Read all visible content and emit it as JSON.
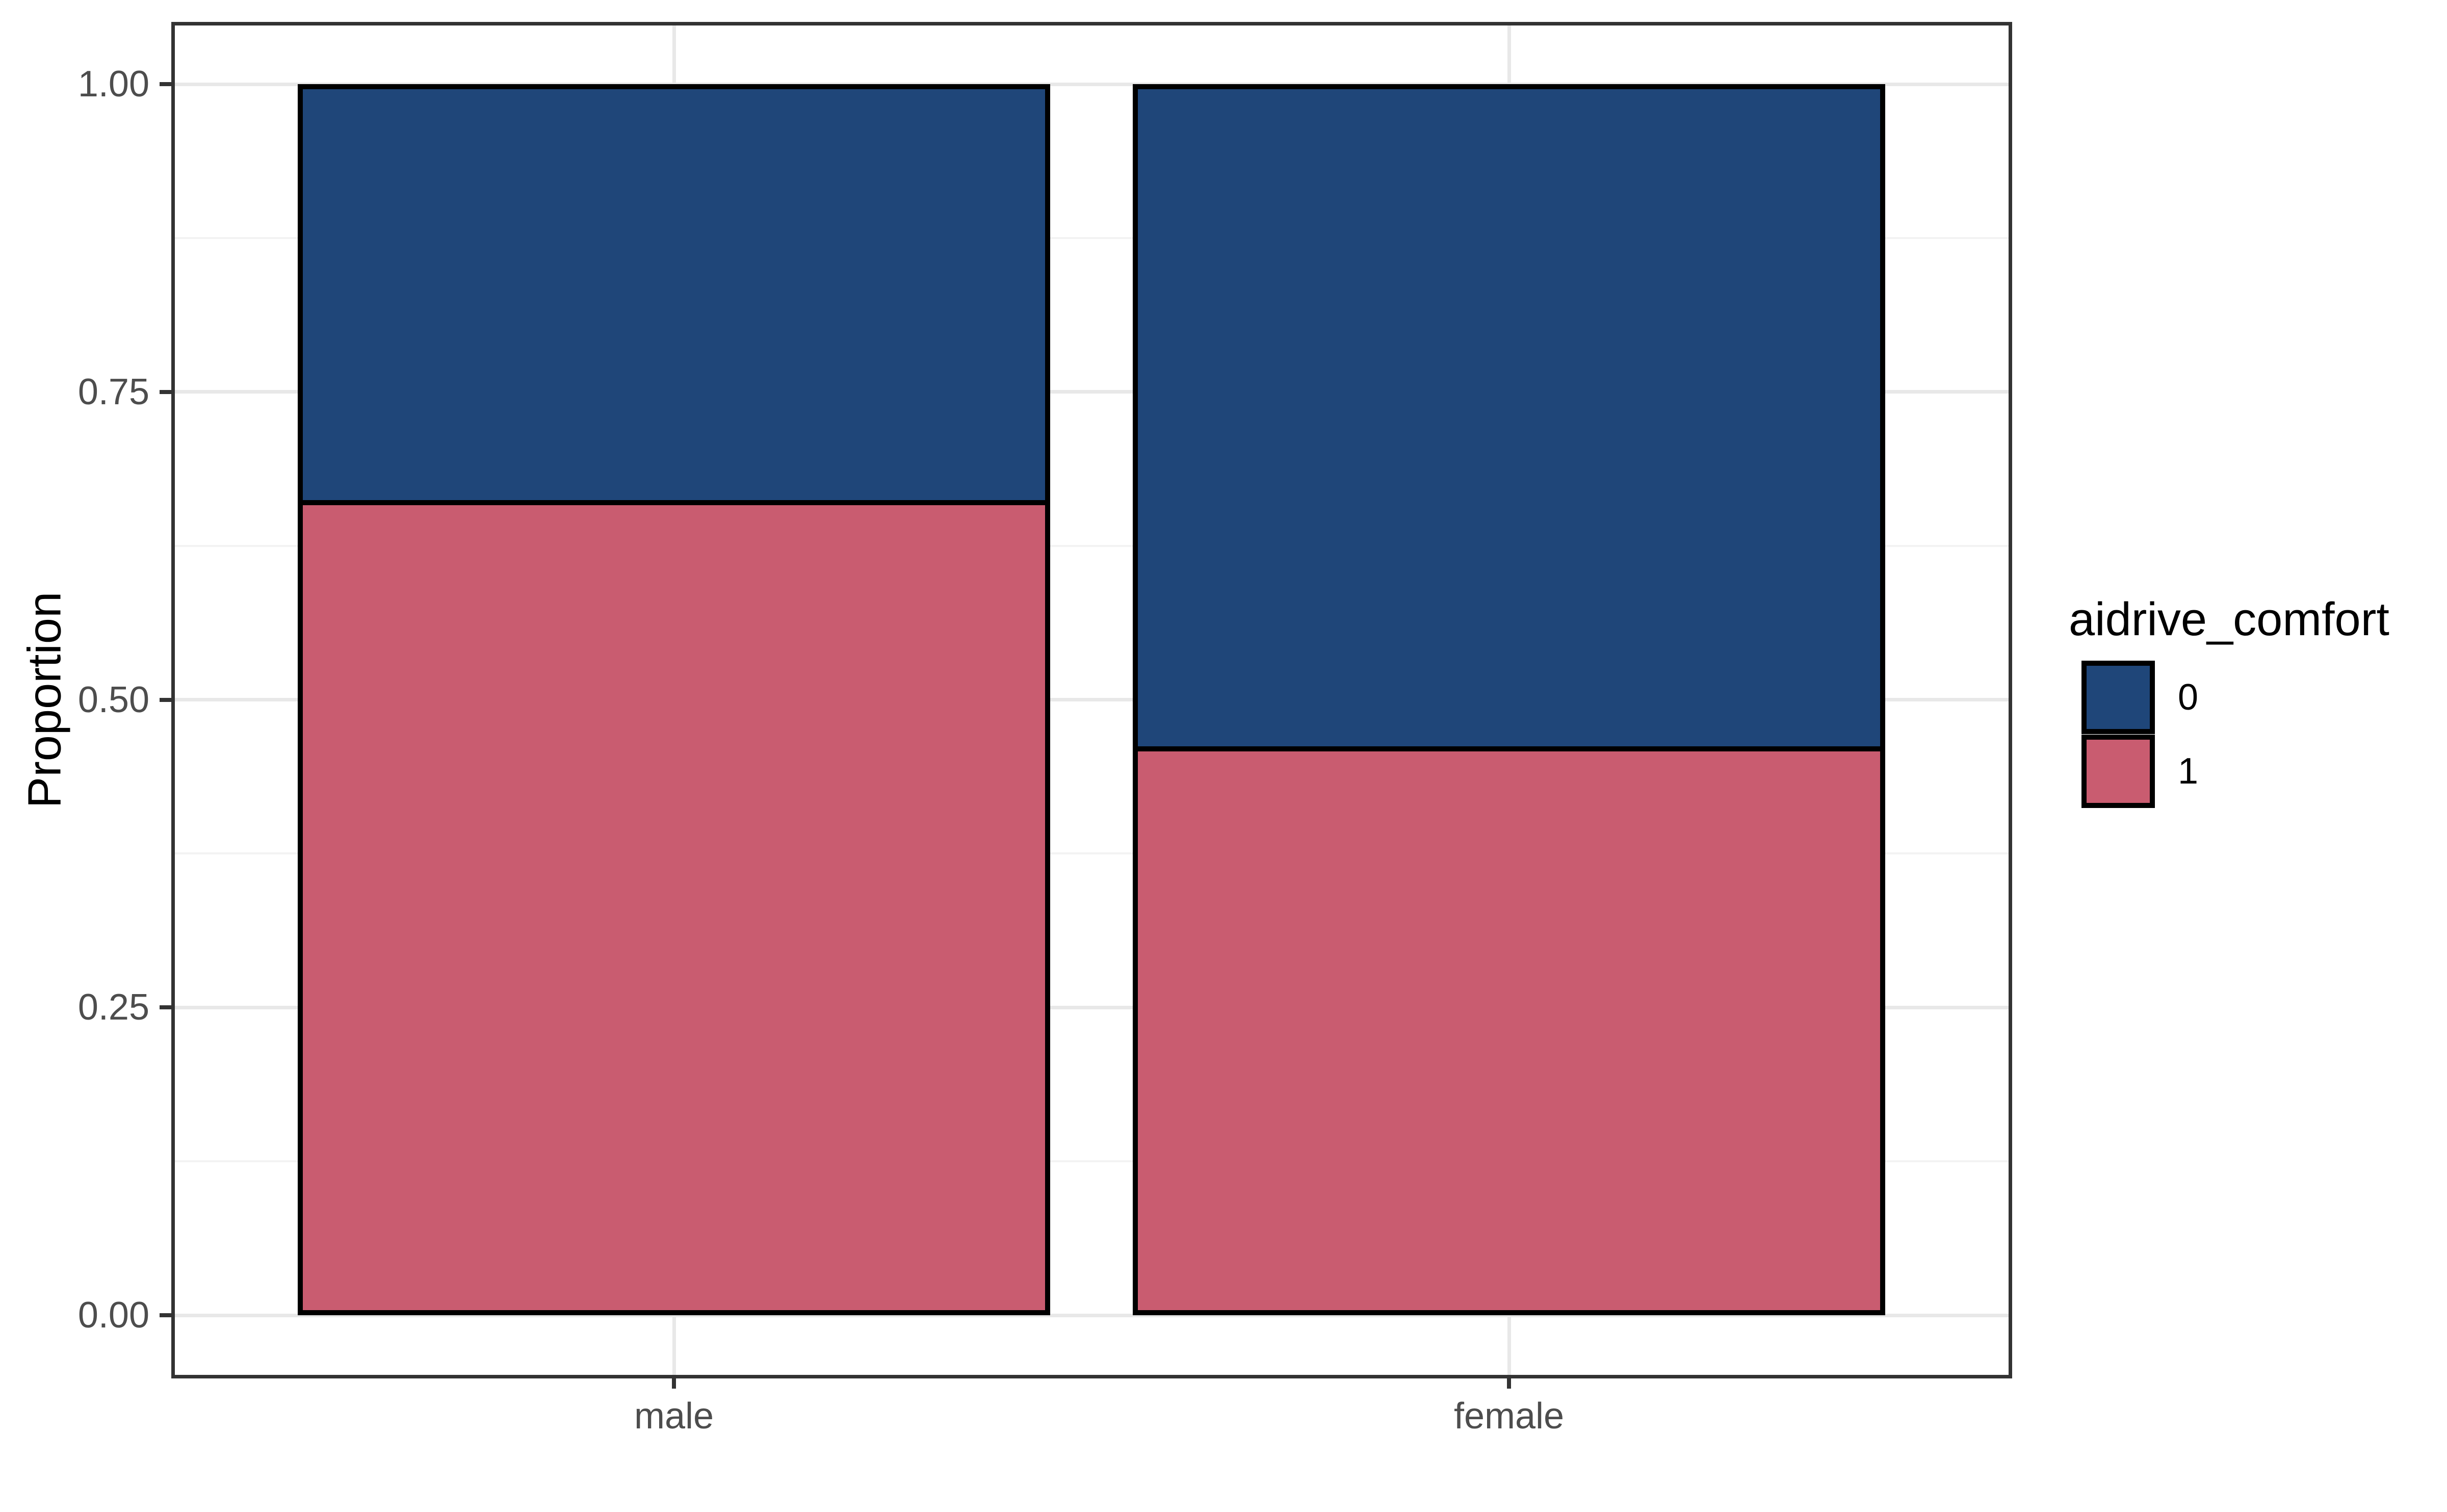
{
  "chart_data": {
    "type": "bar",
    "subtype": "stacked_proportion",
    "orientation": "vertical",
    "title": "",
    "xlabel": "",
    "ylabel": "Proportion",
    "categories": [
      "male",
      "female"
    ],
    "series": [
      {
        "name": "0",
        "color": "#1F4679",
        "values": [
          0.34,
          0.54
        ]
      },
      {
        "name": "1",
        "color": "#C95C70",
        "values": [
          0.66,
          0.46
        ]
      }
    ],
    "stack_order_bottom_to_top": [
      "1",
      "0"
    ],
    "ylim": [
      0,
      1
    ],
    "y_major_breaks": [
      0.0,
      0.25,
      0.5,
      0.75,
      1.0
    ],
    "y_major_labels": [
      "0.00",
      "0.25",
      "0.50",
      "0.75",
      "1.00"
    ],
    "y_minor_breaks": [
      0.125,
      0.375,
      0.625,
      0.875
    ],
    "grid": {
      "horizontal": true,
      "vertical_at_categories": true,
      "major_color": "#E8E8E8",
      "minor_color": "#F3F3F3"
    },
    "bar_border_color": "#000000",
    "panel_border_color": "#333333",
    "tick_color": "#333333",
    "axis_text_color": "#4D4D4D",
    "legend": {
      "position": "right",
      "title": "aidrive_comfort",
      "entries": [
        "0",
        "1"
      ]
    }
  }
}
